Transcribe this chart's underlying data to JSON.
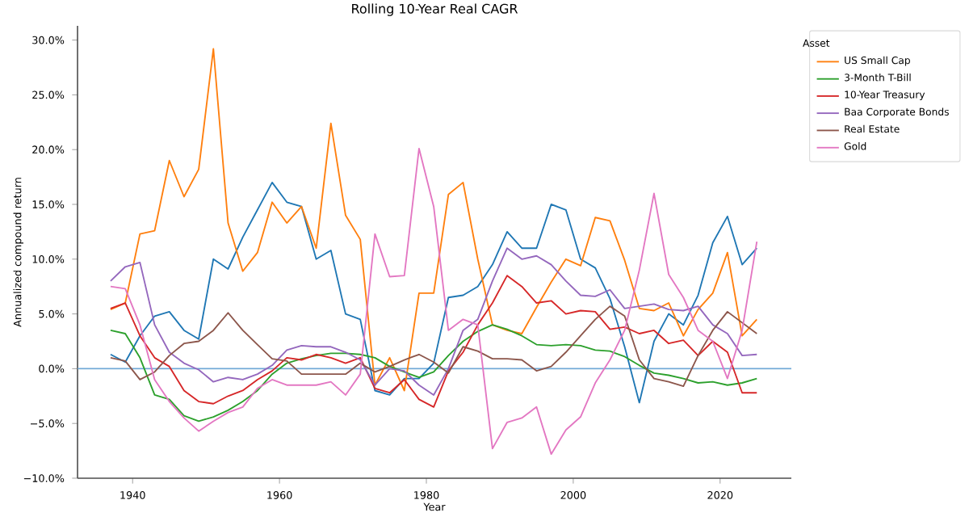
{
  "chart_data": {
    "type": "line",
    "title": "Rolling 10-Year Real CAGR",
    "xlabel": "Year",
    "ylabel": "Annualized compound return",
    "legend_title": "Asset",
    "legend": "top right",
    "x": [
      1937,
      1939,
      1941,
      1943,
      1945,
      1947,
      1949,
      1951,
      1953,
      1955,
      1957,
      1959,
      1961,
      1963,
      1965,
      1967,
      1969,
      1971,
      1973,
      1975,
      1977,
      1979,
      1981,
      1983,
      1985,
      1987,
      1989,
      1991,
      1993,
      1995,
      1997,
      1999,
      2001,
      2003,
      2005,
      2007,
      2009,
      2011,
      2013,
      2015,
      2017,
      2019,
      2021,
      2023,
      2025
    ],
    "xlim": [
      1932.5,
      2029.7
    ],
    "xticks": [
      1940,
      1960,
      1980,
      2000,
      2020
    ],
    "ylim": [
      -10,
      31.3
    ],
    "yticks": [
      {
        "value": -10,
        "label": "−10.0%"
      },
      {
        "value": -5,
        "label": "−5.0%"
      },
      {
        "value": 0,
        "label": "0.0%"
      },
      {
        "value": 5,
        "label": "5.0%"
      },
      {
        "value": 10,
        "label": "10.0%"
      },
      {
        "value": 15,
        "label": "15.0%"
      },
      {
        "value": 20,
        "label": "20.0%"
      },
      {
        "value": 25,
        "label": "25.0%"
      },
      {
        "value": 30,
        "label": "30.0%"
      }
    ],
    "ref_lines": [
      {
        "axis": "y",
        "value": 0,
        "color": "#6fa8d6"
      }
    ],
    "series": [
      {
        "color": "#1f77b4",
        "values": [
          1.3,
          0.6,
          3,
          4.8,
          5.2,
          3.5,
          2.7,
          10,
          9.1,
          12,
          14.5,
          17,
          15.2,
          14.8,
          10,
          10.8,
          5.0,
          4.5,
          -2,
          -2.4,
          -0.9,
          -0.9,
          0.5,
          6.5,
          6.7,
          7.5,
          9.5,
          12.5,
          11,
          11,
          15,
          14.5,
          10,
          9.2,
          6.4,
          2,
          -3.1,
          2.5,
          5,
          4,
          6.7,
          11.5,
          13.9,
          9.5,
          11
        ]
      },
      {
        "name": "US Small Cap",
        "color": "#ff7f0e",
        "values": [
          5.4,
          6,
          12.3,
          12.6,
          19,
          15.7,
          18.2,
          29.2,
          13.3,
          8.9,
          10.6,
          15.2,
          13.3,
          14.8,
          11,
          22.4,
          14,
          11.8,
          -1.5,
          1,
          -2,
          6.9,
          6.9,
          15.9,
          17,
          10,
          4,
          3.5,
          3.2,
          5.6,
          7.9,
          10,
          9.4,
          13.8,
          13.5,
          9.9,
          5.5,
          5.3,
          6,
          3,
          5.4,
          6.9,
          10.6,
          3,
          4.5
        ]
      },
      {
        "name": "3-Month T-Bill",
        "color": "#2ca02c",
        "values": [
          3.5,
          3.2,
          1.0,
          -2.4,
          -2.8,
          -4.3,
          -4.8,
          -4.4,
          -3.8,
          -3,
          -2,
          -0.5,
          0.5,
          0.9,
          1.2,
          1.4,
          1.4,
          1.3,
          1,
          0.2,
          -0.3,
          -0.8,
          -0.3,
          1.2,
          2.5,
          3.4,
          4,
          3.6,
          3,
          2.2,
          2.1,
          2.2,
          2.1,
          1.7,
          1.6,
          1.1,
          0.3,
          -0.4,
          -0.6,
          -0.9,
          -1.3,
          -1.2,
          -1.5,
          -1.3,
          -0.9
        ]
      },
      {
        "name": "10-Year Treasury",
        "color": "#d62728",
        "values": [
          5.5,
          6,
          3,
          1,
          0.2,
          -2,
          -3,
          -3.2,
          -2.5,
          -2,
          -1,
          -0.2,
          1,
          0.8,
          1.3,
          1,
          0.5,
          1,
          -1.8,
          -2.2,
          -1,
          -2.8,
          -3.5,
          -0.2,
          1.5,
          4,
          6,
          8.5,
          7.5,
          6,
          6.2,
          5,
          5.3,
          5.2,
          3.6,
          3.8,
          3.2,
          3.5,
          2.3,
          2.6,
          1.2,
          2.5,
          1.5,
          -2.2,
          -2.2
        ]
      },
      {
        "name": "Baa Corporate Bonds",
        "color": "#9467bd",
        "values": [
          8,
          9.3,
          9.7,
          4,
          1.5,
          0.5,
          -0.1,
          -1.2,
          -0.8,
          -1,
          -0.5,
          0.3,
          1.7,
          2.1,
          2,
          2,
          1.5,
          0.8,
          -1.5,
          0,
          -0.2,
          -1.5,
          -2.4,
          0,
          3.5,
          4.5,
          8,
          11,
          10,
          10.3,
          9.5,
          8,
          6.7,
          6.6,
          7.2,
          5.5,
          5.7,
          5.9,
          5.4,
          5.3,
          5.7,
          4,
          3.2,
          1.2,
          1.3
        ]
      },
      {
        "name": "Real Estate",
        "color": "#8c564b",
        "values": [
          1.0,
          0.7,
          -1,
          -0.3,
          1.2,
          2.3,
          2.5,
          3.5,
          5.1,
          3.5,
          2.2,
          0.9,
          0.7,
          -0.5,
          -0.5,
          -0.5,
          -0.5,
          0.5,
          -0.3,
          0.2,
          0.8,
          1.3,
          0.6,
          -0.4,
          2,
          1.6,
          0.9,
          0.9,
          0.8,
          -0.2,
          0.2,
          1.5,
          3,
          4.5,
          5.7,
          4.8,
          0.8,
          -0.9,
          -1.2,
          -1.6,
          1.2,
          3.5,
          5.2,
          4.2,
          3.2
        ]
      },
      {
        "name": "Gold",
        "color": "#e377c2",
        "values": [
          7.5,
          7.3,
          4,
          -1,
          -3,
          -4.5,
          -5.7,
          -4.8,
          -4,
          -3.5,
          -1.8,
          -1,
          -1.5,
          -1.5,
          -1.5,
          -1.2,
          -2.4,
          -0.5,
          12.3,
          8.4,
          8.5,
          20.1,
          14.8,
          3.5,
          4.5,
          4,
          -7.3,
          -4.9,
          -4.5,
          -3.5,
          -7.8,
          -5.6,
          -4.4,
          -1.3,
          0.8,
          3.5,
          9,
          16,
          8.6,
          6.5,
          3.5,
          2.5,
          -0.9,
          3.5,
          11.6
        ]
      }
    ]
  }
}
